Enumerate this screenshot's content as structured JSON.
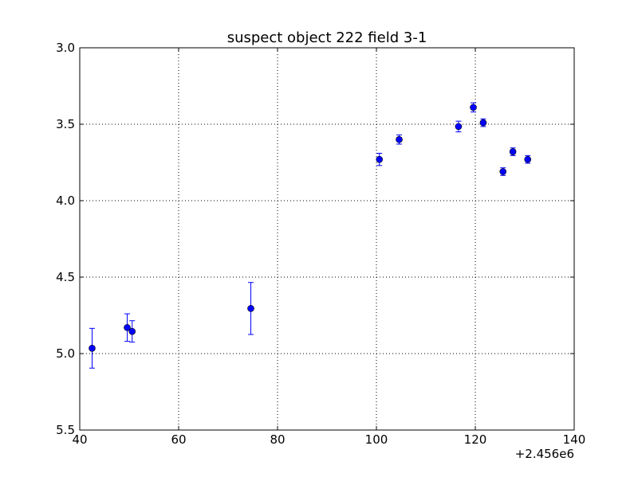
{
  "chart_data": {
    "type": "scatter",
    "title": "suspect object 222 field 3-1",
    "xlabel": "",
    "ylabel": "",
    "x_offset_label": "+2.456e6",
    "xlim": [
      40,
      140
    ],
    "ylim": [
      3.0,
      5.5
    ],
    "y_inverted": true,
    "grid": true,
    "grid_style": "dotted",
    "x_ticks": [
      40,
      60,
      80,
      100,
      120,
      140
    ],
    "x_tick_labels": [
      "40",
      "60",
      "80",
      "100",
      "120",
      "140"
    ],
    "y_ticks": [
      3.0,
      3.5,
      4.0,
      4.5,
      5.0,
      5.5
    ],
    "y_tick_labels": [
      "3.0",
      "3.5",
      "4.0",
      "4.5",
      "5.0",
      "5.5"
    ],
    "series": [
      {
        "color": "#0000ff",
        "marker": "circle",
        "error_bars": true,
        "points": [
          {
            "x": 42.5,
            "y": 4.965,
            "err": 0.13
          },
          {
            "x": 49.6,
            "y": 4.83,
            "err": 0.09
          },
          {
            "x": 50.6,
            "y": 4.855,
            "err": 0.07
          },
          {
            "x": 74.6,
            "y": 4.705,
            "err": 0.17
          },
          {
            "x": 100.6,
            "y": 3.73,
            "err": 0.04
          },
          {
            "x": 104.6,
            "y": 3.6,
            "err": 0.03
          },
          {
            "x": 116.6,
            "y": 3.515,
            "err": 0.035
          },
          {
            "x": 119.6,
            "y": 3.39,
            "err": 0.03
          },
          {
            "x": 121.6,
            "y": 3.49,
            "err": 0.025
          },
          {
            "x": 125.6,
            "y": 3.81,
            "err": 0.025
          },
          {
            "x": 127.6,
            "y": 3.68,
            "err": 0.025
          },
          {
            "x": 130.6,
            "y": 3.73,
            "err": 0.025
          }
        ]
      }
    ]
  }
}
